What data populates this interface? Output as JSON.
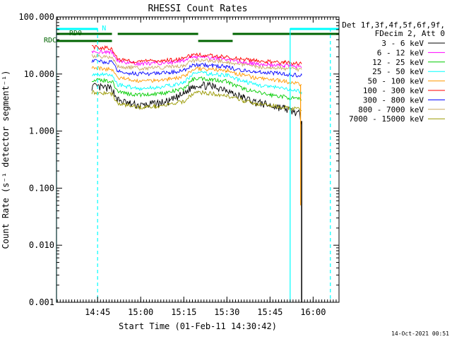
{
  "chart_data": {
    "type": "line",
    "title": "RHESSI Count Rates",
    "xlabel": "Start Time (01-Feb-11 14:30:42)",
    "ylabel": "Count Rate (s⁻¹ detector segment⁻¹)",
    "y_scale": "log",
    "ylim": [
      0.001,
      100
    ],
    "xlim": [
      "14:30:42",
      "16:09:00"
    ],
    "grid": false,
    "legend_position": "right",
    "x_tick_labels": [
      "14:45",
      "15:00",
      "15:15",
      "15:30",
      "15:45",
      "16:00"
    ],
    "y_tick_labels": [
      "0.001",
      "0.010",
      "0.100",
      "1.000",
      "10.000",
      "100.000"
    ],
    "legend_header": [
      "Det 1f,3f,4f,5f,6f,9f,",
      "FDecim 2, Att 0"
    ],
    "footer_date": "14-Oct-2021 00:51",
    "x": [
      "14:43",
      "14:50",
      "14:52",
      "14:56",
      "15:00",
      "15:05",
      "15:10",
      "15:15",
      "15:18",
      "15:20",
      "15:25",
      "15:30",
      "15:32",
      "15:36",
      "15:40",
      "15:45",
      "15:50",
      "15:52",
      "15:55",
      "15:56"
    ],
    "series": [
      {
        "name": "3 - 6 keV",
        "color": "#000000",
        "values": [
          6,
          5.5,
          3.5,
          3.0,
          2.8,
          3.0,
          3.3,
          4.5,
          6,
          6.5,
          6,
          5.5,
          4.5,
          3.8,
          3.2,
          2.8,
          2.5,
          2.3,
          2.0,
          1.5
        ]
      },
      {
        "name": "6 - 12 keV",
        "color": "#ff00ff",
        "values": [
          25,
          24,
          17,
          16,
          15,
          15.5,
          16,
          17,
          20,
          20,
          19,
          18,
          17,
          16,
          15,
          14.5,
          14,
          14,
          13.5,
          13
        ]
      },
      {
        "name": "12 - 25 keV",
        "color": "#00cc00",
        "values": [
          8,
          7.5,
          5,
          4.5,
          4.3,
          4.5,
          4.8,
          5.5,
          8,
          8.5,
          8,
          7.5,
          6.5,
          5.5,
          4.8,
          4.3,
          4.0,
          3.8,
          3.6,
          3.5
        ]
      },
      {
        "name": "25 - 50 keV",
        "color": "#00ffff",
        "values": [
          10,
          9.5,
          6.5,
          6,
          5.5,
          5.8,
          6.2,
          7,
          10,
          10.5,
          10,
          9.5,
          8.5,
          7.5,
          6.5,
          6,
          5.5,
          5.2,
          5,
          4.8
        ]
      },
      {
        "name": "50 - 100 keV",
        "color": "#ff9900",
        "values": [
          13,
          12,
          8.5,
          8,
          7.5,
          7.8,
          8.2,
          9,
          12,
          12.5,
          12,
          11.5,
          10.5,
          9.5,
          8.5,
          8,
          7.5,
          7,
          6.8,
          6.5
        ]
      },
      {
        "name": "100 - 300 keV",
        "color": "#ff0000",
        "values": [
          30,
          28,
          18,
          17,
          16.5,
          17,
          17.5,
          18.5,
          22,
          22,
          21,
          20,
          19,
          18,
          17,
          16.5,
          16,
          15.5,
          15,
          15
        ]
      },
      {
        "name": "300 - 800 keV",
        "color": "#0000ff",
        "values": [
          17,
          16,
          11,
          10.5,
          10,
          10.2,
          10.5,
          11.5,
          14,
          14.5,
          14,
          13.5,
          12.5,
          11.5,
          11,
          10.5,
          10,
          9.8,
          9.5,
          9.5
        ]
      },
      {
        "name": "800 - 7000 keV",
        "color": "#ccaa66",
        "values": [
          21,
          20,
          13.5,
          13,
          12.5,
          12.8,
          13.2,
          14,
          17,
          17.5,
          17,
          16.5,
          15.5,
          14.5,
          13.5,
          13,
          12.5,
          12.2,
          12,
          12
        ]
      },
      {
        "name": "7000 - 15000 keV",
        "color": "#999900",
        "values": [
          4.8,
          4.5,
          3.0,
          2.8,
          2.6,
          2.7,
          2.9,
          3.3,
          4.5,
          4.8,
          4.5,
          4.2,
          3.8,
          3.4,
          3.0,
          2.8,
          2.6,
          2.5,
          2.4,
          2.3
        ]
      }
    ],
    "annotations": {
      "flags": [
        {
          "label": "N",
          "color": "#00ffff",
          "segments": [
            [
              "14:30:42",
              "14:45"
            ],
            [
              "15:52",
              "16:09"
            ]
          ]
        },
        {
          "label": "RD0",
          "color": "#006400",
          "segments": [
            [
              "14:30:42",
              "14:50"
            ],
            [
              "14:52",
              "15:20"
            ],
            [
              "15:32",
              "16:09"
            ]
          ]
        },
        {
          "label": "RDC",
          "color": "#006400",
          "segments": [
            [
              "14:30:42",
              "14:50"
            ],
            [
              "15:20",
              "15:32"
            ]
          ]
        }
      ],
      "vertical_lines": [
        {
          "time": "14:30:42",
          "style": "solid",
          "color": "#00ffff"
        },
        {
          "time": "14:45",
          "style": "dashed",
          "color": "#00ffff"
        },
        {
          "time": "15:52",
          "style": "solid",
          "color": "#00ffff"
        },
        {
          "time": "16:06",
          "style": "dashed",
          "color": "#00ffff"
        }
      ]
    }
  }
}
